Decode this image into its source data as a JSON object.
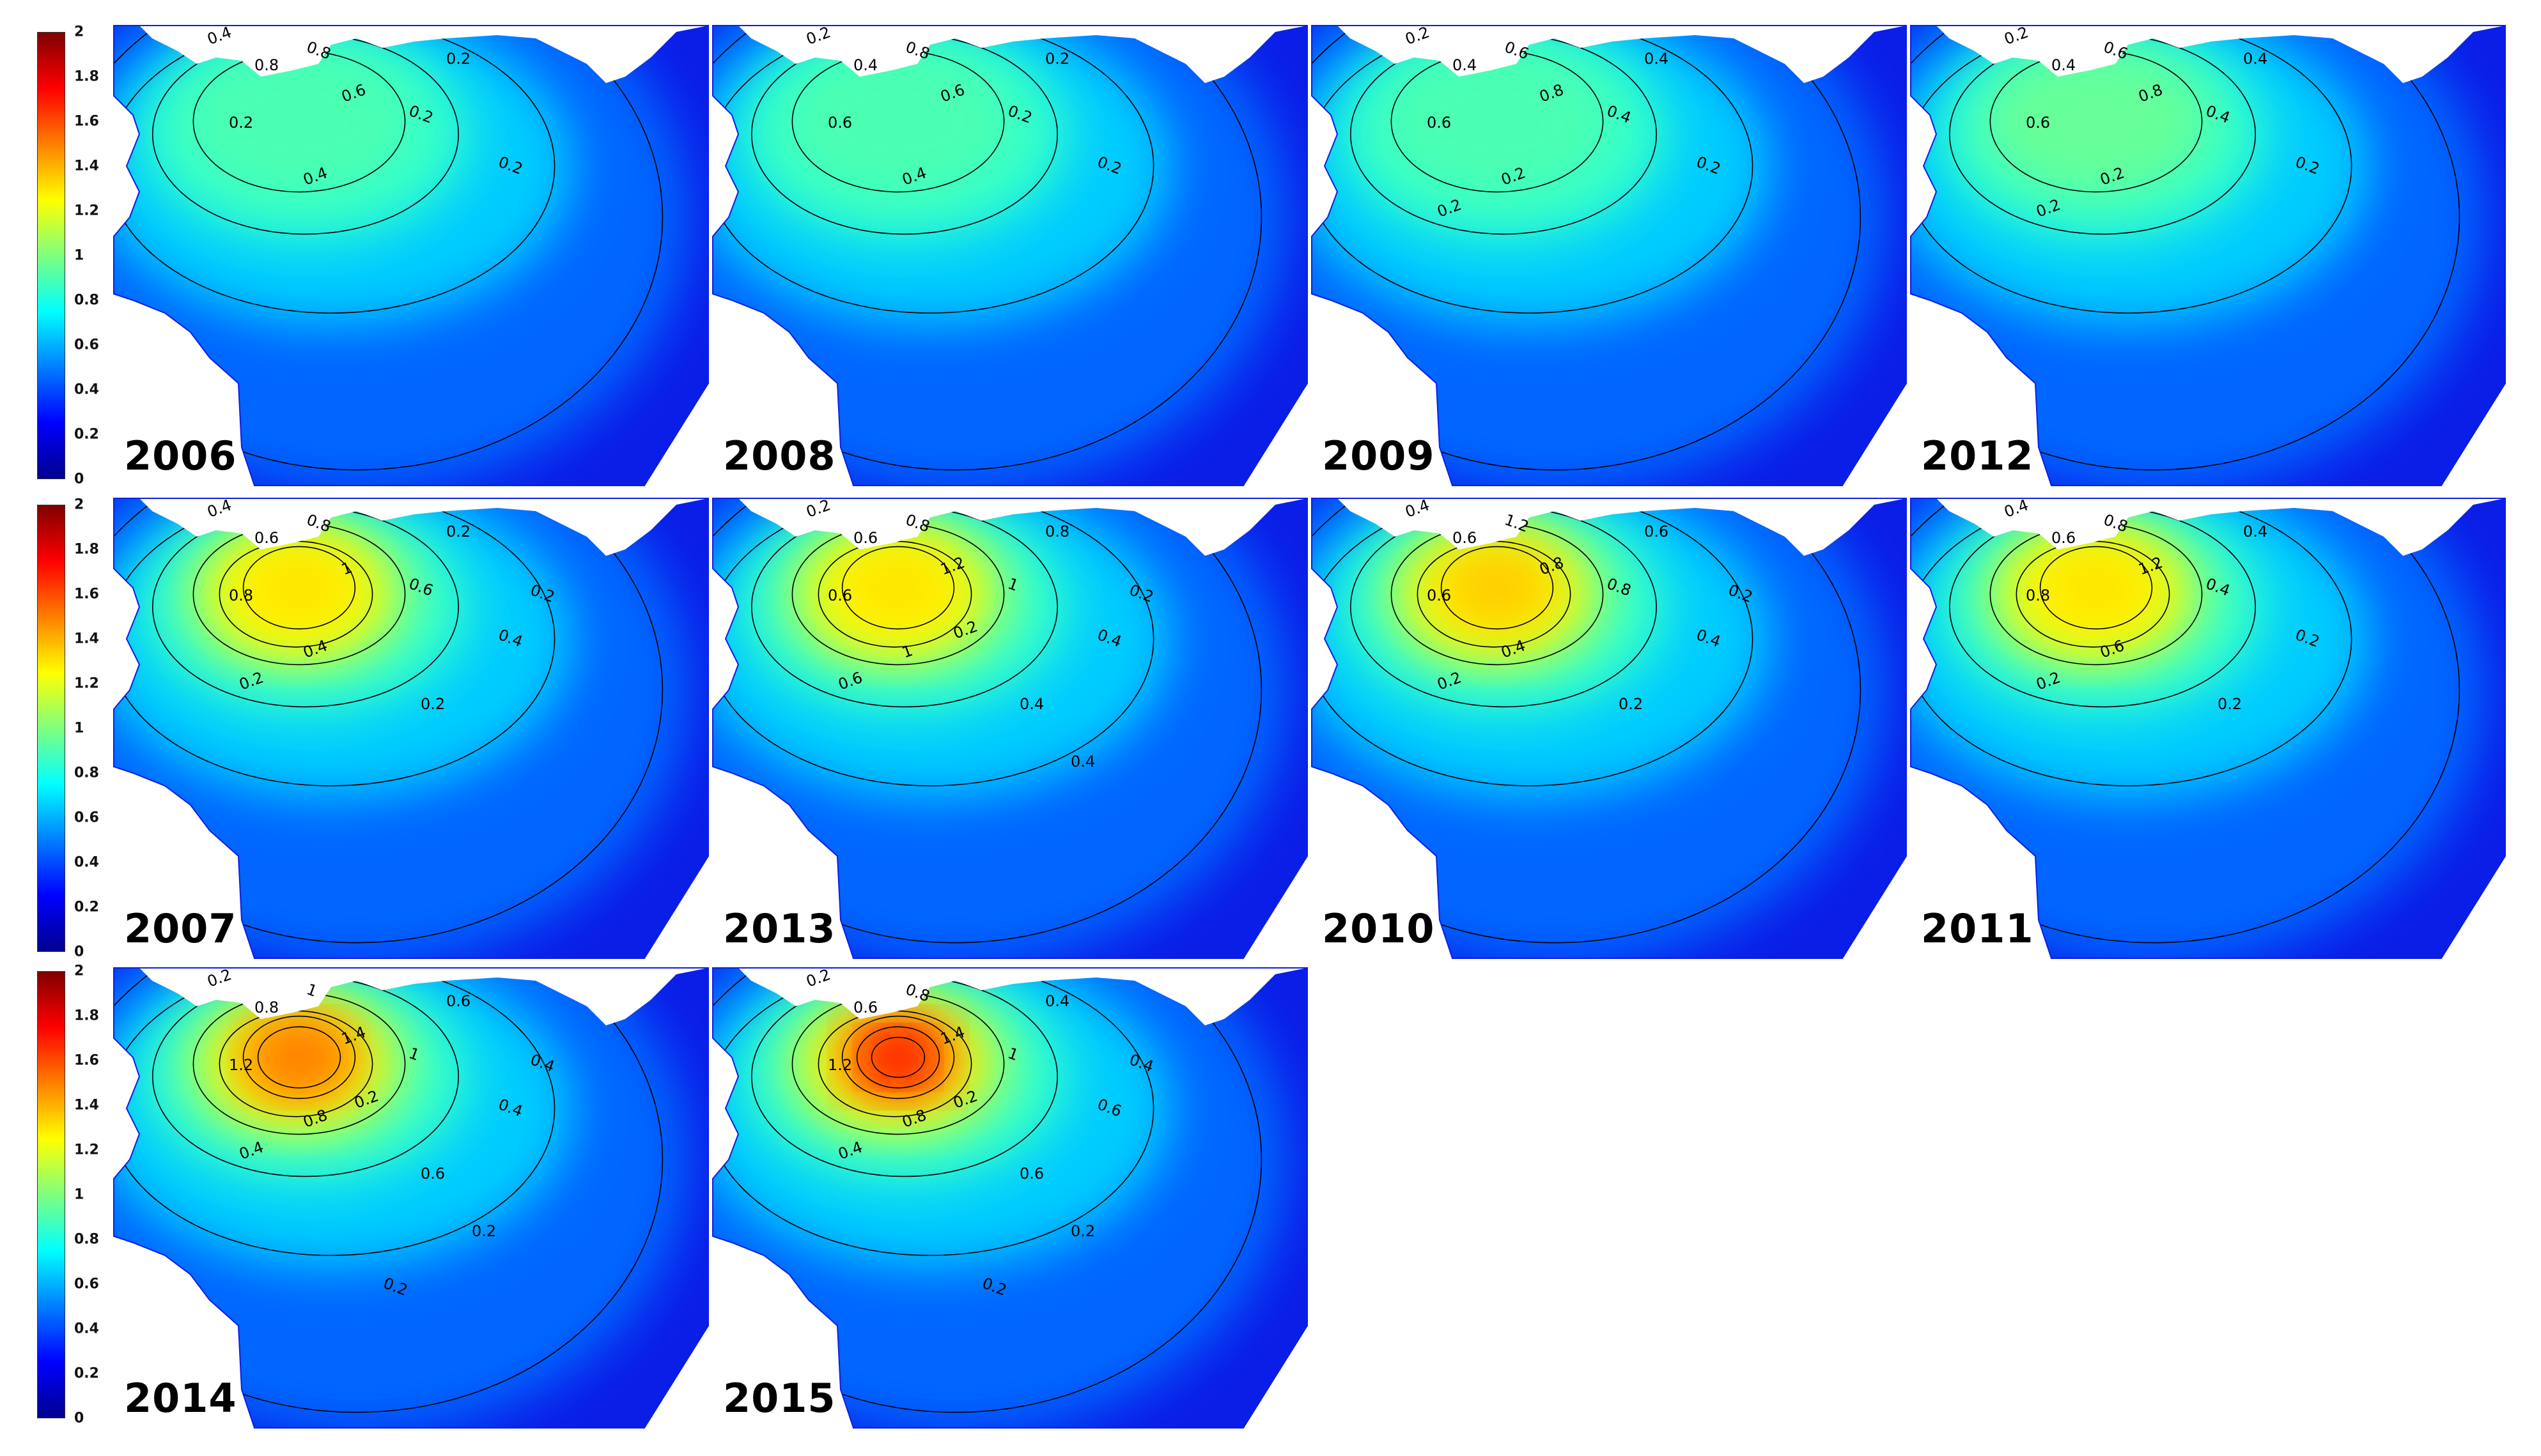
{
  "colorbar": {
    "ticks": [
      "2",
      "1.8",
      "1.6",
      "1.4",
      "1.2",
      "1",
      "0.8",
      "0.6",
      "0.4",
      "0.2",
      "0"
    ],
    "min": 0,
    "max": 2,
    "colormap": "jet",
    "colors": [
      "#00008f",
      "#0000ff",
      "#007fff",
      "#00ffff",
      "#7fff7f",
      "#ffff00",
      "#ff7f00",
      "#ff0000",
      "#7f0000"
    ]
  },
  "panels": [
    {
      "year": "2006",
      "max_level": 0.9,
      "labels": [
        "0.4",
        "0.8",
        "0.8",
        "0.6",
        "0.2",
        "0.2",
        "0.4",
        "0.2",
        "0.2"
      ]
    },
    {
      "year": "2008",
      "max_level": 0.9,
      "labels": [
        "0.2",
        "0.4",
        "0.8",
        "0.6",
        "0.6",
        "0.2",
        "0.4",
        "0.2",
        "0.2"
      ]
    },
    {
      "year": "2009",
      "max_level": 0.9,
      "labels": [
        "0.2",
        "0.4",
        "0.6",
        "0.8",
        "0.6",
        "0.4",
        "0.2",
        "0.4",
        "0.2",
        "0.2"
      ]
    },
    {
      "year": "2012",
      "max_level": 0.95,
      "labels": [
        "0.2",
        "0.4",
        "0.6",
        "0.8",
        "0.6",
        "0.4",
        "0.2",
        "0.4",
        "0.2",
        "0.2"
      ]
    },
    {
      "year": "2007",
      "max_level": 1.3,
      "labels": [
        "0.4",
        "0.6",
        "0.8",
        "1",
        "0.8",
        "0.6",
        "0.4",
        "0.2",
        "0.4",
        "0.2",
        "0.2",
        "0.2"
      ]
    },
    {
      "year": "2013",
      "max_level": 1.3,
      "labels": [
        "0.2",
        "0.6",
        "0.8",
        "1.2",
        "0.6",
        "1",
        "1",
        "0.8",
        "0.4",
        "0.6",
        "0.4",
        "0.2",
        "0.2",
        "0.4"
      ]
    },
    {
      "year": "2010",
      "max_level": 1.35,
      "labels": [
        "0.4",
        "0.6",
        "1.2",
        "0.8",
        "0.6",
        "0.8",
        "0.4",
        "0.6",
        "0.4",
        "0.2",
        "0.2",
        "0.2"
      ]
    },
    {
      "year": "2011",
      "max_level": 1.3,
      "labels": [
        "0.4",
        "0.6",
        "0.8",
        "1.2",
        "0.8",
        "0.4",
        "0.6",
        "0.4",
        "0.2",
        "0.2",
        "0.2"
      ]
    },
    {
      "year": "2014",
      "max_level": 1.5,
      "labels": [
        "0.2",
        "0.8",
        "1",
        "1.4",
        "1.2",
        "1",
        "0.8",
        "0.6",
        "0.4",
        "0.4",
        "0.6",
        "0.4",
        "0.2",
        "0.2",
        "0.2"
      ]
    },
    {
      "year": "2015",
      "max_level": 1.7,
      "labels": [
        "0.2",
        "0.6",
        "0.8",
        "1.4",
        "1.2",
        "1",
        "0.8",
        "0.4",
        "0.6",
        "0.4",
        "0.6",
        "0.4",
        "0.2",
        "0.2",
        "0.2"
      ]
    }
  ]
}
